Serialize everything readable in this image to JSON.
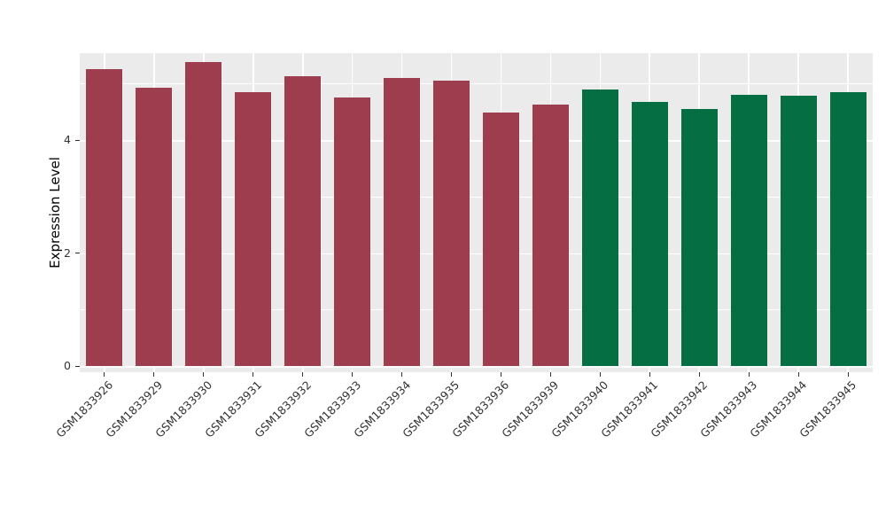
{
  "chart_data": {
    "type": "bar",
    "title": "",
    "xlabel": "",
    "ylabel": "Expression Level",
    "categories": [
      "GSM1833926",
      "GSM1833929",
      "GSM1833930",
      "GSM1833931",
      "GSM1833932",
      "GSM1833933",
      "GSM1833934",
      "GSM1833935",
      "GSM1833936",
      "GSM1833939",
      "GSM1833940",
      "GSM1833941",
      "GSM1833942",
      "GSM1833943",
      "GSM1833944",
      "GSM1833945"
    ],
    "values": [
      5.25,
      4.93,
      5.38,
      4.85,
      5.13,
      4.75,
      5.1,
      5.05,
      4.48,
      4.63,
      4.9,
      4.67,
      4.55,
      4.8,
      4.78,
      4.84
    ],
    "bar_groups": [
      0,
      0,
      0,
      0,
      0,
      0,
      0,
      0,
      0,
      0,
      1,
      1,
      1,
      1,
      1,
      1
    ],
    "group_colors": [
      "#9e3d4e",
      "#066e43"
    ],
    "ylim": [
      0,
      5.5
    ],
    "yticks": [
      0,
      2,
      4
    ],
    "minor_yticks": [
      1,
      3,
      5
    ],
    "grid": true,
    "legend": "none",
    "panel_background": "#ebebeb",
    "gridline_color": "#ffffff"
  }
}
